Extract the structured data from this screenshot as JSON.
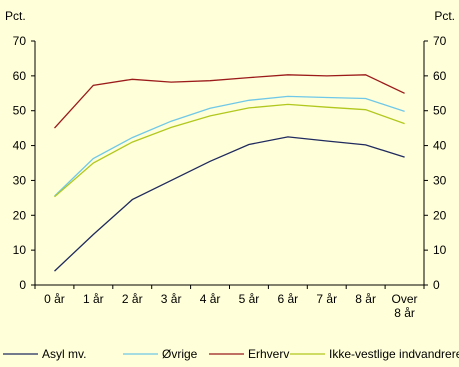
{
  "chart_data": {
    "type": "line",
    "y_unit_left": "Pct.",
    "y_unit_right": "Pct.",
    "ylim": [
      0,
      70
    ],
    "yticks": [
      0,
      10,
      20,
      30,
      40,
      50,
      60,
      70
    ],
    "categories": [
      [
        "0 år"
      ],
      [
        "1 år"
      ],
      [
        "2 år"
      ],
      [
        "3 år"
      ],
      [
        "4 år"
      ],
      [
        "5 år"
      ],
      [
        "6 år"
      ],
      [
        "7 år"
      ],
      [
        "8 år"
      ],
      [
        "Over",
        "8 år"
      ]
    ],
    "grid": false,
    "legend_position": "bottom",
    "series": [
      {
        "name": "Asyl mv.",
        "color": "#1f2a5e",
        "values": [
          4,
          14.5,
          24.5,
          30,
          35.5,
          40.3,
          42.5,
          41.3,
          40.2,
          36.7
        ]
      },
      {
        "name": "Øvrige",
        "color": "#6fc8e8",
        "values": [
          25.5,
          36.3,
          42.3,
          47,
          50.7,
          53,
          54.1,
          53.8,
          53.5,
          49.8
        ]
      },
      {
        "name": "Erhverv",
        "color": "#9b1b1b",
        "values": [
          45,
          57.3,
          59,
          58.2,
          58.6,
          59.5,
          60.3,
          60,
          60.3,
          55
        ]
      },
      {
        "name": "Ikke-vestlige indvandrere",
        "color": "#b2c81e",
        "values": [
          25.3,
          35,
          41,
          45.2,
          48.5,
          50.8,
          51.8,
          51,
          50.3,
          46.3
        ]
      }
    ]
  }
}
